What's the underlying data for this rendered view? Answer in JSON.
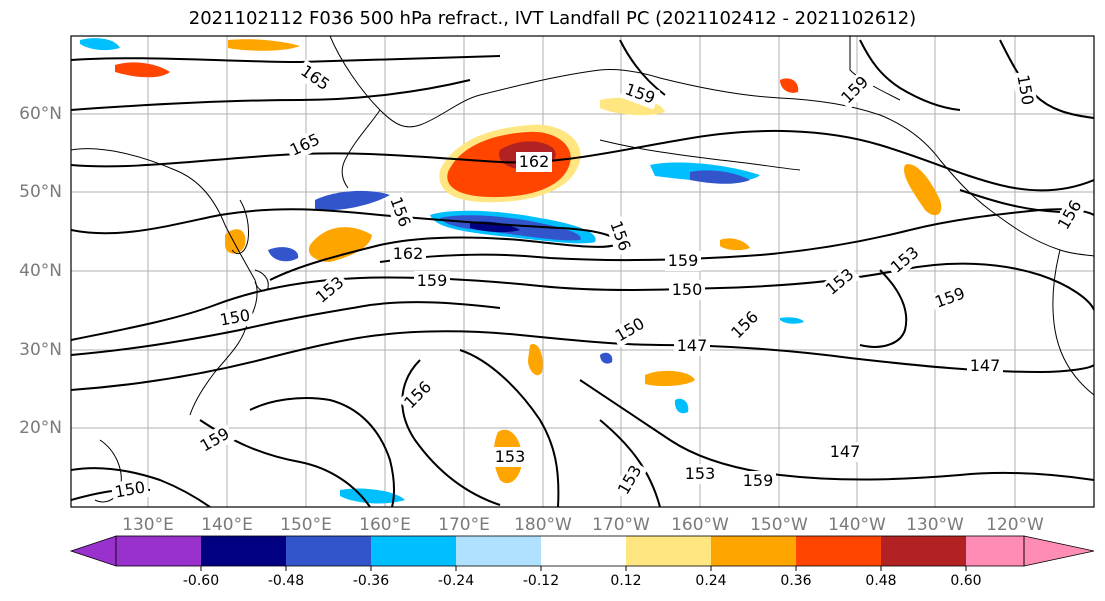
{
  "title": "2021102112 F036 500 hPa refract., IVT Landfall PC (2021102412 - 2021102612)",
  "lat_labels": [
    "60°N",
    "50°N",
    "40°N",
    "30°N",
    "20°N"
  ],
  "lon_labels": [
    "130°E",
    "140°E",
    "150°E",
    "160°E",
    "170°E",
    "180°W",
    "170°W",
    "160°W",
    "150°W",
    "140°W",
    "130°W",
    "120°W"
  ],
  "colorbar": {
    "colors": [
      "#9932CC",
      "#000080",
      "#3355CC",
      "#00BFFF",
      "#B0E2FF",
      "#FFFFFF",
      "#FFE680",
      "#FFA500",
      "#FF4500",
      "#B22222",
      "#FF8CB4"
    ],
    "labels": [
      "-0.60",
      "-0.48",
      "-0.36",
      "-0.24",
      "-0.12",
      "0.12",
      "0.24",
      "0.36",
      "0.48",
      "0.60"
    ]
  },
  "contour_labels": [
    "165",
    "165",
    "162",
    "162",
    "159",
    "159",
    "159",
    "159",
    "159",
    "159",
    "159",
    "156",
    "156",
    "156",
    "156",
    "156",
    "153",
    "153",
    "153",
    "153",
    "153",
    "153",
    "150",
    "150",
    "150",
    "150",
    "150",
    "147",
    "147",
    "147"
  ]
}
